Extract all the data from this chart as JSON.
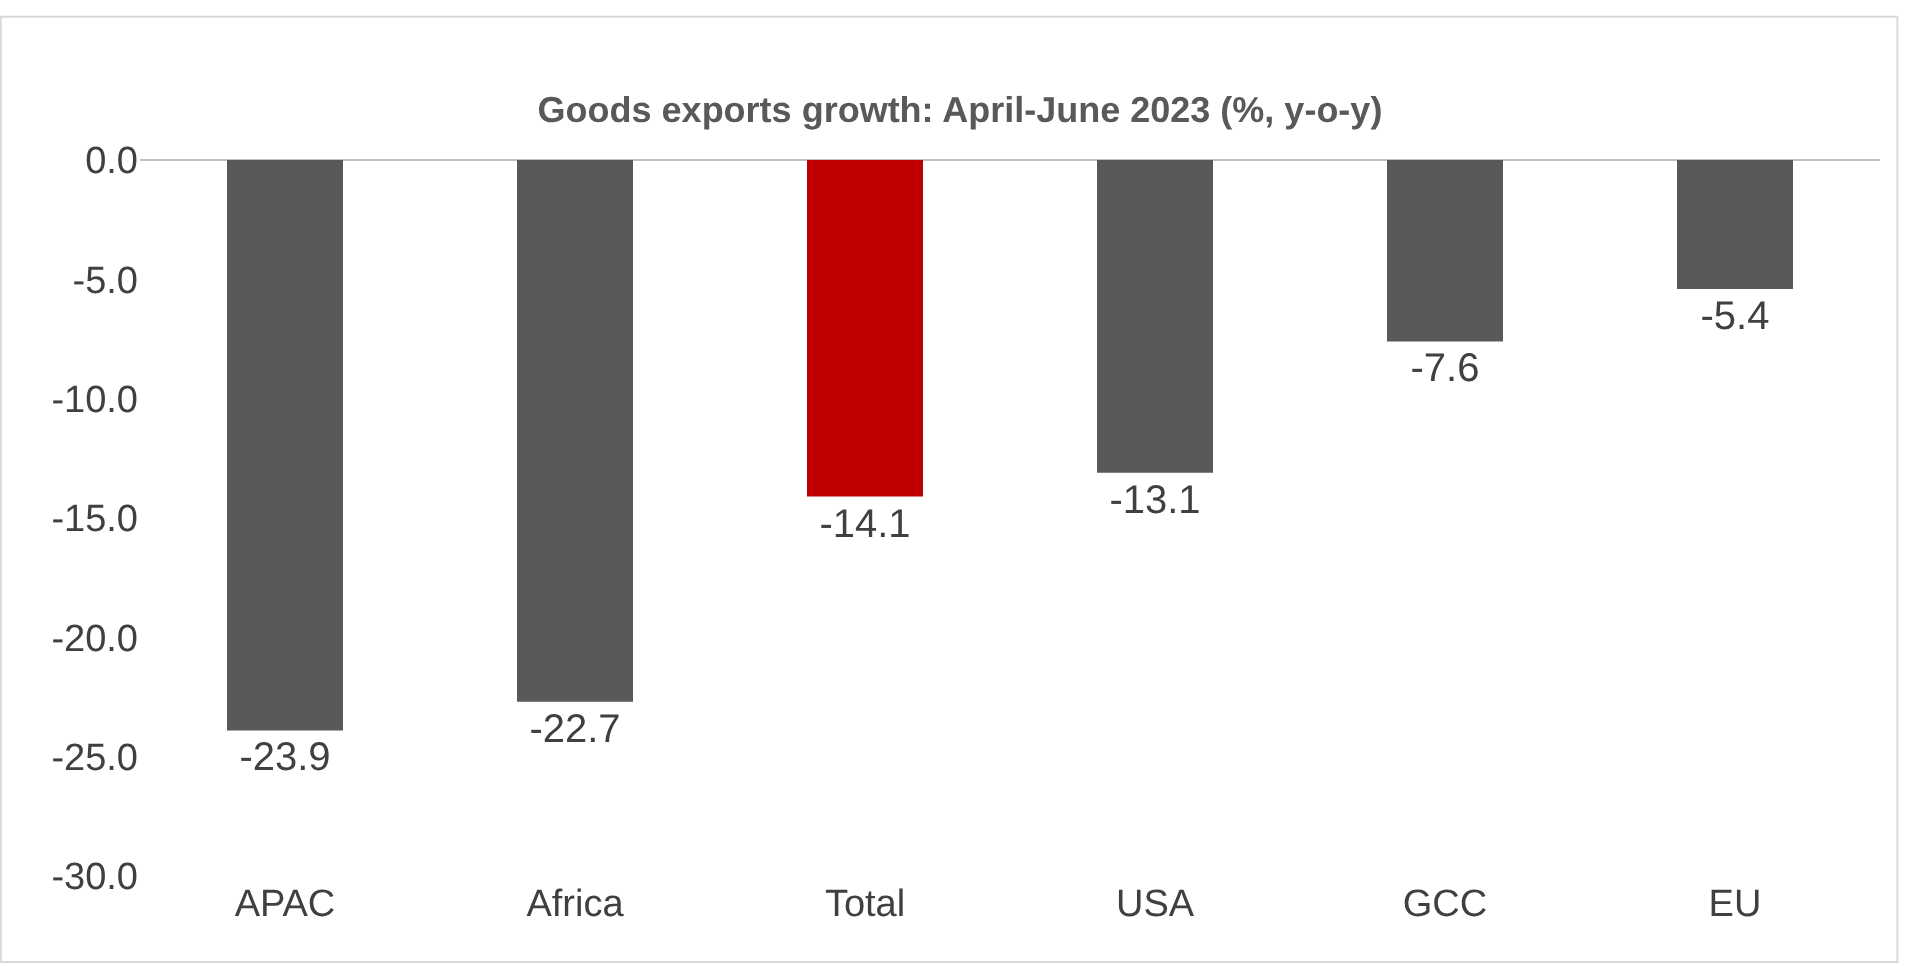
{
  "chart_data": {
    "type": "bar",
    "title": "Goods exports growth: April-June 2023 (%, y-o-y)",
    "categories": [
      "APAC",
      "Africa",
      "Total",
      "USA",
      "GCC",
      "EU"
    ],
    "values": [
      -23.9,
      -22.7,
      -14.1,
      -13.1,
      -7.6,
      -5.4
    ],
    "colors": [
      "#595959",
      "#595959",
      "#c00000",
      "#595959",
      "#595959",
      "#595959"
    ],
    "ylim": [
      -30,
      0
    ],
    "yticks": [
      {
        "value": 0,
        "label": "0.0"
      },
      {
        "value": -5,
        "label": "-5.0"
      },
      {
        "value": -10,
        "label": "-10.0"
      },
      {
        "value": -15,
        "label": "-15.0"
      },
      {
        "value": -20,
        "label": "-20.0"
      },
      {
        "value": -25,
        "label": "-25.0"
      },
      {
        "value": -30,
        "label": "-30.0"
      }
    ],
    "grid": false,
    "legend": false,
    "data_labels": true
  }
}
